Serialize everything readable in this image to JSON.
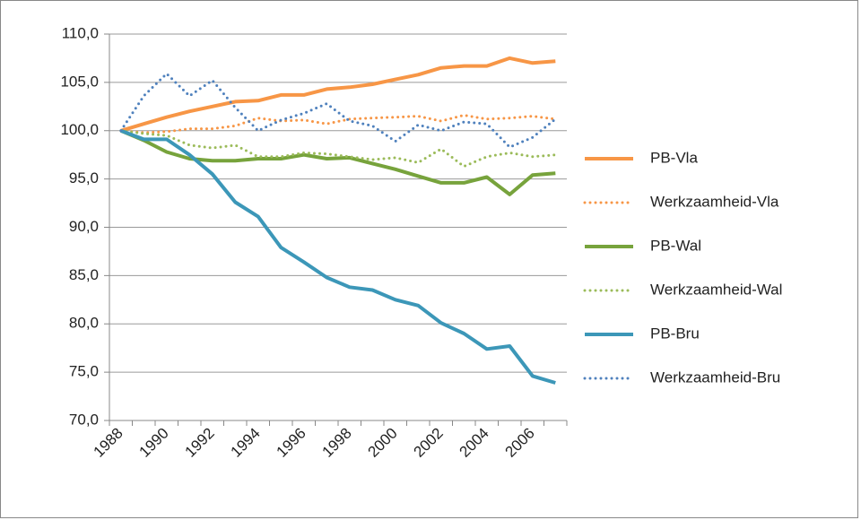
{
  "chart_data": {
    "type": "line",
    "categories": [
      "1988",
      null,
      "1990",
      null,
      "1992",
      null,
      "1994",
      null,
      "1996",
      null,
      "1998",
      null,
      "2000",
      null,
      "2002",
      null,
      "2004",
      null,
      "2006",
      null
    ],
    "series": [
      {
        "name": "PB-Vla",
        "color": "#f79646",
        "style": "solid",
        "values": [
          100,
          100.7,
          101.4,
          102.0,
          102.5,
          103.0,
          103.1,
          103.7,
          103.7,
          104.3,
          104.5,
          104.8,
          105.3,
          105.8,
          106.5,
          106.7,
          106.7,
          107.5,
          107.0,
          107.2
        ]
      },
      {
        "name": "Werkzaamheid-Vla",
        "color": "#f79646",
        "style": "dotted",
        "values": [
          100,
          99.8,
          99.9,
          100.2,
          100.2,
          100.5,
          101.3,
          101.0,
          101.1,
          100.7,
          101.2,
          101.3,
          101.4,
          101.5,
          101.0,
          101.6,
          101.2,
          101.3,
          101.5,
          101.2
        ]
      },
      {
        "name": "PB-Wal",
        "color": "#77a33c",
        "style": "solid",
        "values": [
          100,
          99.0,
          97.8,
          97.1,
          96.9,
          96.9,
          97.1,
          97.1,
          97.5,
          97.1,
          97.2,
          96.6,
          96.0,
          95.3,
          94.6,
          94.6,
          95.2,
          93.4,
          95.4,
          95.6
        ]
      },
      {
        "name": "Werkzaamheid-Wal",
        "color": "#9bbb59",
        "style": "dotted",
        "values": [
          100,
          99.7,
          99.5,
          98.5,
          98.2,
          98.5,
          97.3,
          97.3,
          97.7,
          97.6,
          97.3,
          97.0,
          97.2,
          96.7,
          98.1,
          96.3,
          97.3,
          97.7,
          97.3,
          97.5
        ]
      },
      {
        "name": "PB-Bru",
        "color": "#3c97b8",
        "style": "solid",
        "values": [
          100,
          99.1,
          99.1,
          97.5,
          95.5,
          92.6,
          91.1,
          87.9,
          86.4,
          84.8,
          83.8,
          83.5,
          82.5,
          81.9,
          80.1,
          79.0,
          77.4,
          77.7,
          74.6,
          73.9
        ]
      },
      {
        "name": "Werkzaamheid-Bru",
        "color": "#4f81bd",
        "style": "dotted",
        "values": [
          100,
          103.6,
          105.9,
          103.6,
          105.2,
          102.4,
          100.0,
          101.1,
          101.8,
          102.8,
          101.0,
          100.5,
          98.9,
          100.6,
          100.0,
          100.9,
          100.7,
          98.3,
          99.3,
          101.2
        ]
      }
    ],
    "ylim": [
      70,
      110
    ],
    "yticks": [
      {
        "value": 70,
        "label": "70,0"
      },
      {
        "value": 75,
        "label": "75,0"
      },
      {
        "value": 80,
        "label": "80,0"
      },
      {
        "value": 85,
        "label": "85,0"
      },
      {
        "value": 90,
        "label": "90,0"
      },
      {
        "value": 95,
        "label": "95,0"
      },
      {
        "value": 100,
        "label": "100,0"
      },
      {
        "value": 105,
        "label": "105,0"
      },
      {
        "value": 110,
        "label": "110,0"
      }
    ],
    "grid": true,
    "legend": "right"
  }
}
